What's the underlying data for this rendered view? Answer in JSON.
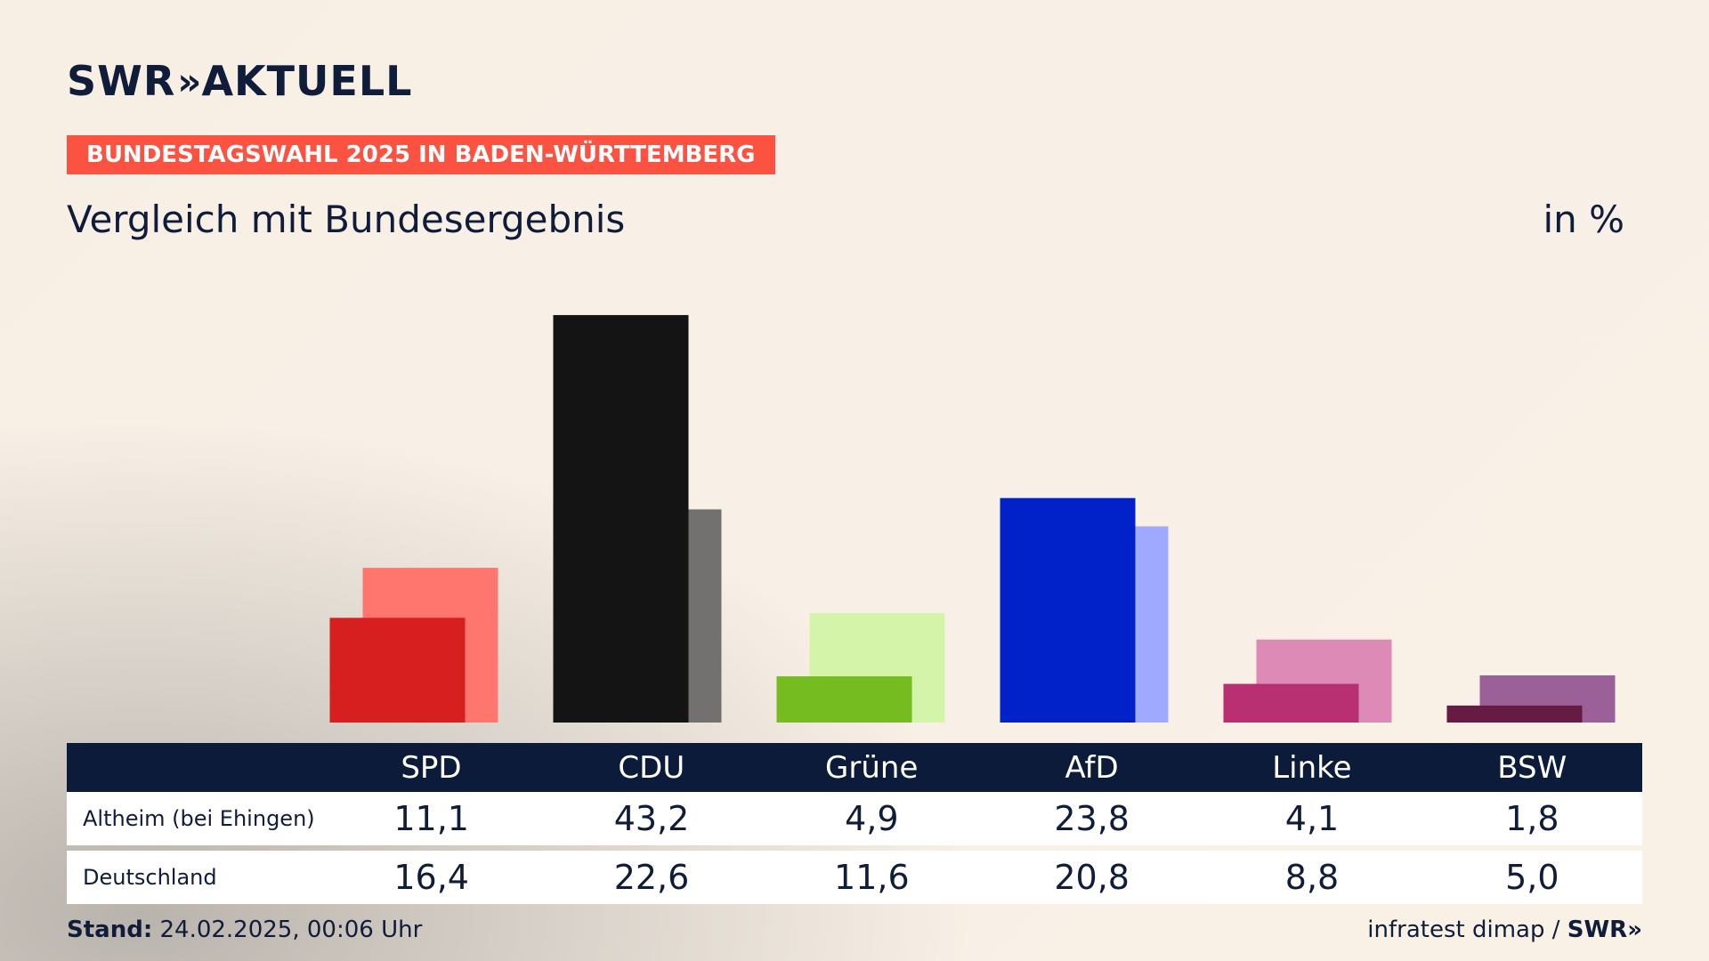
{
  "header": {
    "logo_text": "SWR",
    "logo_arrows": "»",
    "logo_suffix": "AKTUELL",
    "badge": "BUNDESTAGSWAHL 2025 IN BADEN-WÜRTTEMBERG",
    "title": "Vergleich mit Bundesergebnis",
    "unit": "in %"
  },
  "table": {
    "parties": [
      "SPD",
      "CDU",
      "Grüne",
      "AfD",
      "Linke",
      "BSW"
    ],
    "rows": [
      {
        "label": "Altheim (bei Ehingen)",
        "values": [
          "11,1",
          "43,2",
          "4,9",
          "23,8",
          "4,1",
          "1,8"
        ]
      },
      {
        "label": "Deutschland",
        "values": [
          "16,4",
          "22,6",
          "11,6",
          "20,8",
          "8,8",
          "5,0"
        ]
      }
    ]
  },
  "footer": {
    "stand_label": "Stand:",
    "stand_value": "24.02.2025, 00:06 Uhr",
    "source": "infratest dimap /",
    "source_brand": "SWR»"
  },
  "chart_data": {
    "type": "bar",
    "categories": [
      "SPD",
      "CDU",
      "Grüne",
      "AfD",
      "Linke",
      "BSW"
    ],
    "series": [
      {
        "name": "Altheim (bei Ehingen)",
        "values": [
          11.1,
          43.2,
          4.9,
          23.8,
          4.1,
          1.8
        ]
      },
      {
        "name": "Deutschland",
        "values": [
          16.4,
          22.6,
          11.6,
          20.8,
          8.8,
          5.0
        ]
      }
    ],
    "colors": {
      "local": [
        "#d81f1f",
        "#141414",
        "#74bc1f",
        "#0022c8",
        "#b82f72",
        "#661b43"
      ],
      "national": [
        "#ff766f",
        "#737070",
        "#d4f5a9",
        "#9fa9ff",
        "#de8ab7",
        "#9b6097"
      ]
    },
    "ylim": [
      0,
      45
    ],
    "grid": false
  }
}
